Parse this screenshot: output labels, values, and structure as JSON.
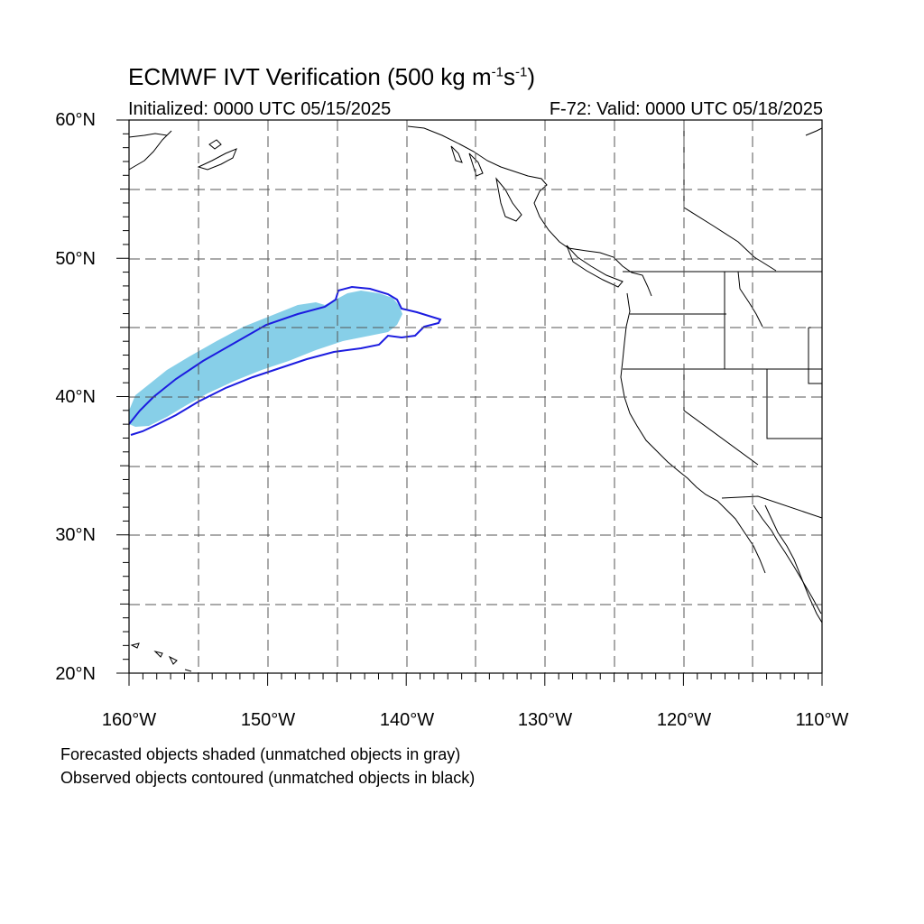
{
  "title": {
    "text": "ECMWF IVT Verification (500 kg m",
    "sup1": "-1",
    "mid": "s",
    "sup2": "-1",
    "close": ")"
  },
  "subtitle": {
    "left": "Initialized: 0000 UTC 05/15/2025",
    "right": "F-72: Valid: 0000 UTC 05/18/2025"
  },
  "axes": {
    "lat_labels": [
      "60°N",
      "50°N",
      "40°N",
      "30°N",
      "20°N"
    ],
    "lon_labels": [
      "160°W",
      "150°W",
      "140°W",
      "130°W",
      "120°W",
      "110°W"
    ],
    "lat_range": [
      20,
      60
    ],
    "lon_range": [
      -160,
      -110
    ],
    "grid_interval_deg": 5,
    "grid_style": "dashed"
  },
  "legend": {
    "line1": "Forecasted objects shaded (unmatched objects in gray)",
    "line2": "Observed objects contoured (unmatched objects in black)"
  },
  "colors": {
    "forecast_fill": "#87cfe8",
    "observed_contour": "#1c1ce0",
    "coastline": "#000000",
    "grid": "#555555"
  },
  "map_features": {
    "forecast_object": "matched forecast IVT object shaded, spanning approx 160W 38N to 141W 47N",
    "observed_object": "matched observed IVT object contoured, spanning approx 160W 37N to 137.5W 48N"
  }
}
